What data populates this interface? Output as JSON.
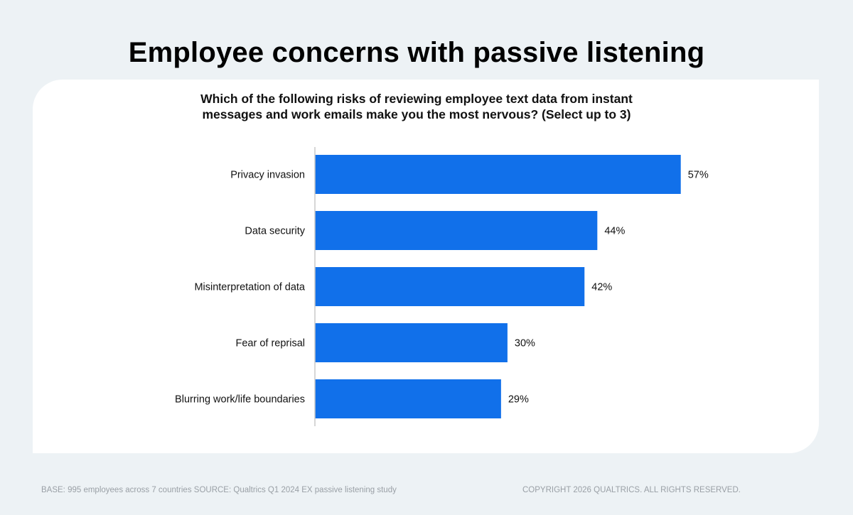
{
  "title": "Employee concerns with passive listening",
  "chart_data": {
    "type": "bar",
    "orientation": "horizontal",
    "title": "Employee concerns with passive listening",
    "subtitle": "Which of the following risks of reviewing employee text data from instant messages and work emails make you the most nervous? (Select up to 3)",
    "categories": [
      "Privacy invasion",
      "Data security",
      "Misinterpretation of data",
      "Fear of reprisal",
      "Blurring work/life boundaries"
    ],
    "values": [
      57,
      44,
      42,
      30,
      29
    ],
    "data_labels": [
      "57%",
      "44%",
      "42%",
      "30%",
      "29%"
    ],
    "xlim": [
      0,
      100
    ],
    "unit": "%",
    "grid": false,
    "bar_color": "#1170ea"
  },
  "footer": {
    "source": "BASE: 995 employees across 7 countries SOURCE: Qualtrics Q1 2024 EX passive listening study",
    "copyright": "COPYRIGHT 2026 QUALTRICS. ALL RIGHTS RESERVED."
  }
}
